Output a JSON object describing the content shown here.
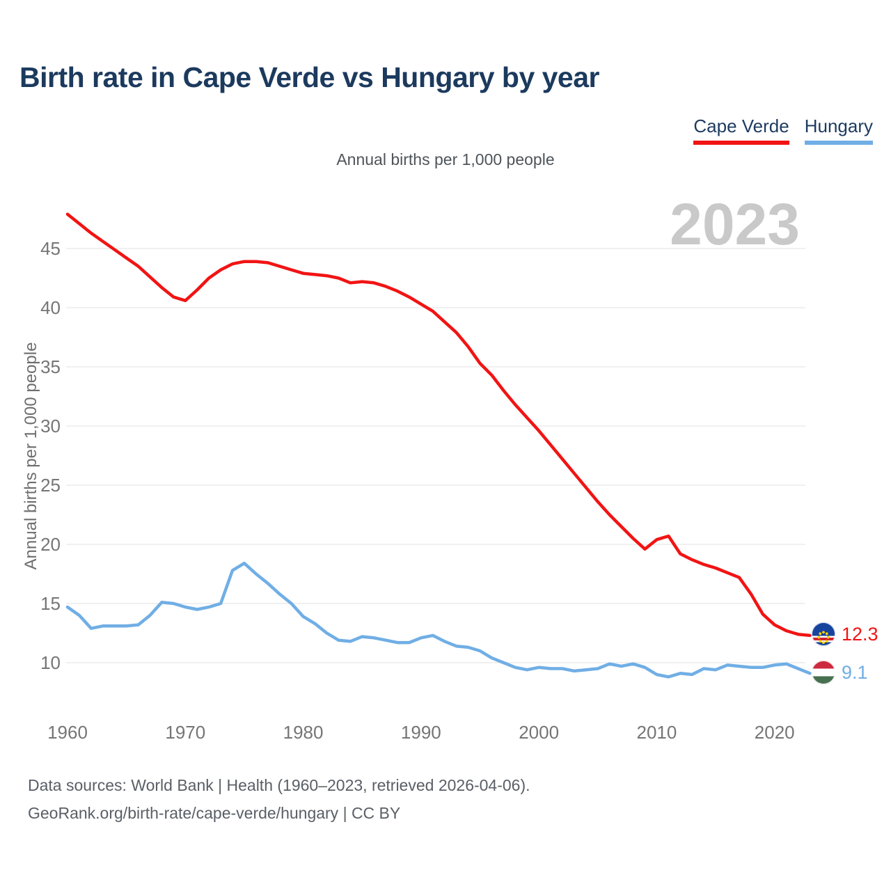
{
  "header": {
    "title": "Birth rate in Cape Verde vs Hungary by year"
  },
  "legend": {
    "items": [
      {
        "label": "Cape Verde",
        "color": "#f11414"
      },
      {
        "label": "Hungary",
        "color": "#70aee5"
      }
    ]
  },
  "subtitle": "Annual births per 1,000 people",
  "watermark": "2023",
  "end_labels": [
    {
      "series": "Cape Verde",
      "value": "12.3",
      "color": "#f11414",
      "flag": "cape-verde-flag"
    },
    {
      "series": "Hungary",
      "value": "9.1",
      "color": "#70aee5",
      "flag": "hungary-flag"
    }
  ],
  "footer": {
    "line1": "Data sources: World Bank | Health (1960–2023, retrieved 2026-04-06).",
    "line2": "GeoRank.org/birth-rate/cape-verde/hungary | CC BY"
  },
  "chart_data": {
    "type": "line",
    "title": "Birth rate in Cape Verde vs Hungary by year",
    "subtitle": "Annual births per 1,000 people",
    "ylabel": "Annual births per 1,000 people",
    "xlabel": "",
    "x_start": 1960,
    "x_end": 2023,
    "xticks": [
      1960,
      1970,
      1980,
      1990,
      2000,
      2010,
      2020
    ],
    "yticks": [
      10,
      15,
      20,
      25,
      30,
      35,
      40,
      45
    ],
    "ylim": [
      8.2,
      48.8
    ],
    "grid": "horizontal",
    "legend_position": "top-right",
    "tick_color": "#757575",
    "grid_color": "#e8e8e8",
    "series": [
      {
        "name": "Cape Verde",
        "color": "#f11414",
        "end_label": 12.3,
        "values": [
          47.9,
          47.1,
          46.3,
          45.6,
          44.9,
          44.2,
          43.5,
          42.6,
          41.7,
          40.9,
          40.6,
          41.5,
          42.5,
          43.2,
          43.7,
          43.9,
          43.9,
          43.8,
          43.5,
          43.2,
          42.9,
          42.8,
          42.7,
          42.5,
          42.1,
          42.2,
          42.1,
          41.8,
          41.4,
          40.9,
          40.3,
          39.7,
          38.8,
          37.9,
          36.7,
          35.3,
          34.3,
          33.0,
          31.8,
          30.7,
          29.6,
          28.4,
          27.2,
          26.0,
          24.8,
          23.6,
          22.5,
          21.5,
          20.5,
          19.6,
          20.4,
          20.7,
          19.2,
          18.7,
          18.3,
          18.0,
          17.6,
          17.2,
          15.8,
          14.1,
          13.2,
          12.7,
          12.4,
          12.3
        ]
      },
      {
        "name": "Hungary",
        "color": "#70aee5",
        "end_label": 9.1,
        "values": [
          14.7,
          14.0,
          12.9,
          13.1,
          13.1,
          13.1,
          13.2,
          14.0,
          15.1,
          15.0,
          14.7,
          14.5,
          14.7,
          15.0,
          17.8,
          18.4,
          17.5,
          16.7,
          15.8,
          15.0,
          13.9,
          13.3,
          12.5,
          11.9,
          11.8,
          12.2,
          12.1,
          11.9,
          11.7,
          11.7,
          12.1,
          12.3,
          11.8,
          11.4,
          11.3,
          11.0,
          10.4,
          10.0,
          9.6,
          9.4,
          9.6,
          9.5,
          9.5,
          9.3,
          9.4,
          9.5,
          9.9,
          9.7,
          9.9,
          9.6,
          9.0,
          8.8,
          9.1,
          9.0,
          9.5,
          9.4,
          9.8,
          9.7,
          9.6,
          9.6,
          9.8,
          9.9,
          9.5,
          9.1
        ]
      }
    ]
  }
}
